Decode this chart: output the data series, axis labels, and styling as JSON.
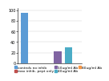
{
  "title": "",
  "series": [
    {
      "label": "controls no inhib",
      "color": "#5b9bd5",
      "value": 95,
      "x": 0
    },
    {
      "label": "max inhib- pept only",
      "color": "#c0504d",
      "value": 0,
      "x": 1
    },
    {
      "label": "10ug/ml Ab",
      "color": "#8064a2",
      "value": 0,
      "x": 2
    },
    {
      "label": "40ug/ml Ab",
      "color": "#8064a2",
      "value": 22,
      "x": 3
    },
    {
      "label": "40ug/ml Ab2",
      "color": "#4bacc6",
      "value": 30,
      "x": 4
    },
    {
      "label": "80ug/ml Ab",
      "color": "#f79646",
      "value": 0,
      "x": 5
    }
  ],
  "bar_colors": [
    "#5b9bd5",
    "#c0504d",
    "#8064a2",
    "#4bacc6",
    "#f79646"
  ],
  "legend_labels": [
    "controls no inhib",
    "max inhib- pept only",
    "10ug/ml Ab",
    "40ug/ml Ab",
    "80ug/ml Ab"
  ],
  "legend_colors": [
    "#5b9bd5",
    "#c0504d",
    "#8064a2",
    "#4bacc6",
    "#f79646"
  ],
  "ylim": [
    0,
    105
  ],
  "background_color": "#ffffff",
  "legend_fontsize": 3.2,
  "tick_fontsize": 3.5,
  "bar_width": 0.7
}
